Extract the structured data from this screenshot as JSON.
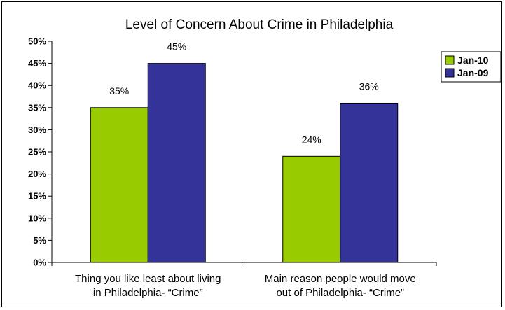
{
  "chart_data": {
    "type": "bar",
    "title": "Level of Concern About Crime in Philadelphia",
    "categories": [
      [
        "Thing you like least about living",
        "in Philadelphia- “Crime”"
      ],
      [
        "Main reason people would move",
        "out of Philadelphia- “Crime”"
      ]
    ],
    "series": [
      {
        "name": "Jan-10",
        "values": [
          35,
          24
        ],
        "labels": [
          "35%",
          "24%"
        ],
        "color": "#99CC00"
      },
      {
        "name": "Jan-09",
        "values": [
          45,
          36
        ],
        "labels": [
          "45%",
          "36%"
        ],
        "color": "#333399"
      }
    ],
    "ylim": [
      0,
      50
    ],
    "yticks": [
      0,
      5,
      10,
      15,
      20,
      25,
      30,
      35,
      40,
      45,
      50
    ],
    "ytick_labels": [
      "0%",
      "5%",
      "10%",
      "15%",
      "20%",
      "25%",
      "30%",
      "35%",
      "40%",
      "45%",
      "50%"
    ],
    "grid": false,
    "legend_position": "right"
  }
}
